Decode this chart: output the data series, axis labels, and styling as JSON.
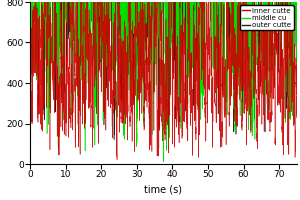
{
  "title": "",
  "xlabel": "time (s)",
  "ylabel": "",
  "xlim": [
    0,
    75
  ],
  "ylim": [
    0,
    800
  ],
  "yticks": [
    0,
    200,
    400,
    600,
    800
  ],
  "xticks": [
    0,
    10,
    20,
    30,
    40,
    50,
    60,
    70
  ],
  "legend_labels": [
    "inner cutte",
    "middle cu",
    "outer cutte"
  ],
  "legend_colors": [
    "#cc0000",
    "#00dd00",
    "#222222"
  ],
  "background_color": "#ffffff",
  "line_width": 0.4,
  "seed": 7,
  "n_points": 15000,
  "duration": 75
}
